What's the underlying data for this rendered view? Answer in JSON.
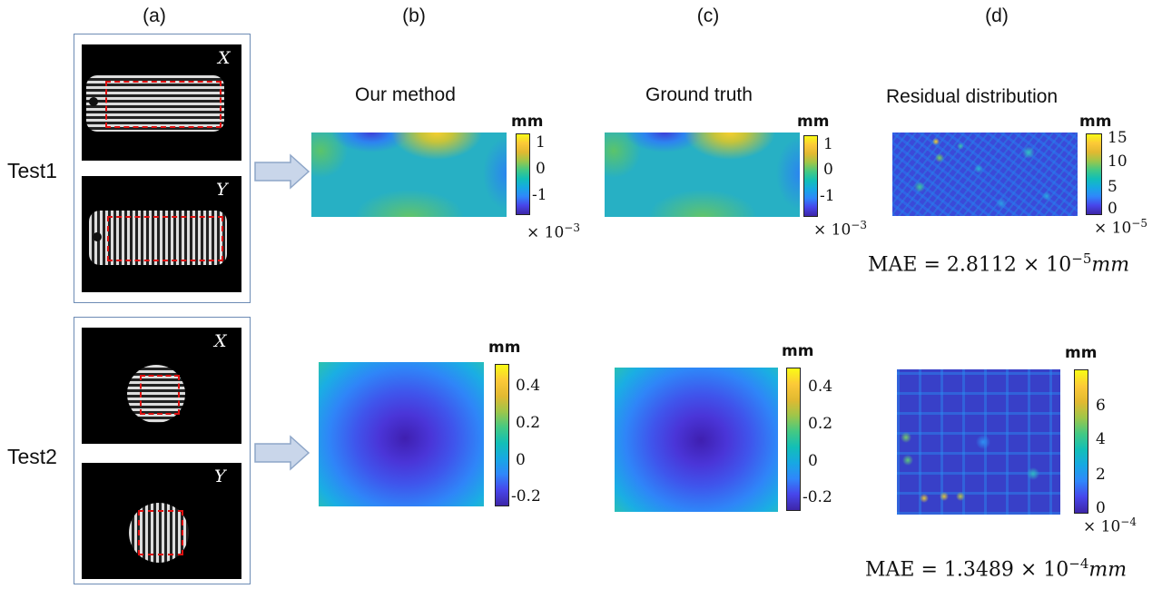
{
  "columns": {
    "a": "(a)",
    "b": "(b)",
    "c": "(c)",
    "d": "(d)"
  },
  "titles": {
    "ours": "Our method",
    "truth": "Ground truth",
    "residual": "Residual distribution"
  },
  "rows": {
    "test1": "Test1",
    "test2": "Test2"
  },
  "fringe_tags": {
    "x": "X",
    "y": "Y"
  },
  "unit": "mm",
  "test1": {
    "ours_ticks": [
      "1",
      "0",
      "-1"
    ],
    "ours_scale": "× 10",
    "ours_exp": "−3",
    "truth_ticks": [
      "1",
      "0",
      "-1"
    ],
    "truth_scale": "× 10",
    "truth_exp": "−3",
    "res_ticks": [
      "15",
      "10",
      "5",
      "0"
    ],
    "res_scale": "× 10",
    "res_exp": "−5",
    "mae_prefix": "MAE = 2.8112 × 10",
    "mae_exp": "−5",
    "mae_unit": "mm"
  },
  "test2": {
    "ours_ticks": [
      "0.4",
      "0.2",
      "0",
      "-0.2"
    ],
    "truth_ticks": [
      "0.4",
      "0.2",
      "0",
      "-0.2"
    ],
    "res_ticks": [
      "6",
      "4",
      "2",
      "0"
    ],
    "res_scale": "× 10",
    "res_exp": "−4",
    "mae_prefix": "MAE = 1.3489 × 10",
    "mae_exp": "−4",
    "mae_unit": "mm"
  },
  "colors": {
    "frame": "#6d8cb5",
    "arrow": "#c9d6ea",
    "dash": "#e01010"
  }
}
